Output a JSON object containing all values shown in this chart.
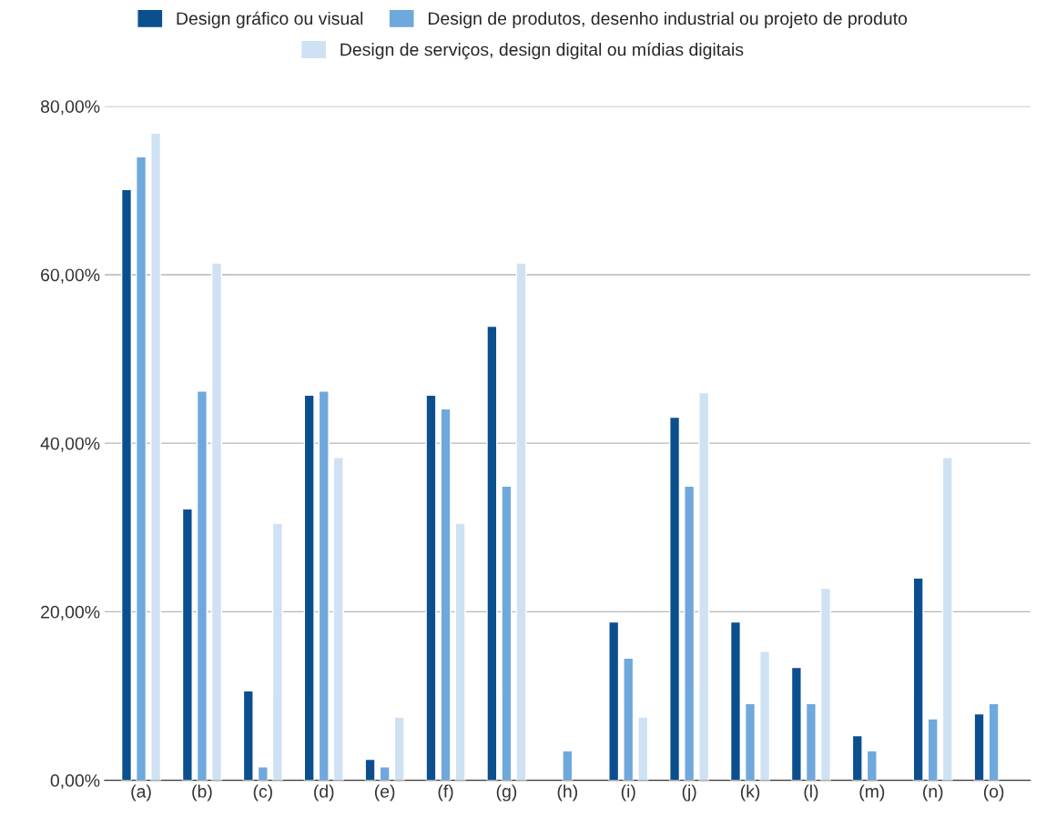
{
  "chart_data": {
    "type": "bar",
    "categories": [
      "(a)",
      "(b)",
      "(c)",
      "(d)",
      "(e)",
      "(f)",
      "(g)",
      "(h)",
      "(i)",
      "(j)",
      "(k)",
      "(l)",
      "(m)",
      "(n)",
      "(o)"
    ],
    "series": [
      {
        "name": "Design gráfico ou visual",
        "color": "#0b4f8f",
        "values": [
          70.1,
          32.2,
          10.6,
          45.7,
          2.5,
          45.7,
          53.9,
          null,
          18.8,
          43.1,
          18.8,
          13.4,
          5.3,
          24.0,
          7.9
        ]
      },
      {
        "name": "Design de produtos, desenho industrial ou projeto de produto",
        "color": "#6fa8dc",
        "values": [
          74.0,
          46.2,
          1.6,
          46.2,
          1.6,
          44.1,
          34.9,
          3.5,
          14.5,
          34.9,
          9.1,
          9.1,
          3.5,
          7.3,
          9.1
        ]
      },
      {
        "name": "Design de serviços, design digital ou mídias digitais",
        "color": "#cfe2f3",
        "values": [
          76.8,
          61.4,
          30.5,
          38.3,
          7.5,
          30.5,
          61.4,
          null,
          7.5,
          46.0,
          15.3,
          22.8,
          null,
          38.3,
          null
        ]
      }
    ],
    "ylim": [
      0,
      80
    ],
    "yticks": [
      {
        "value": 0,
        "label": "0,00%"
      },
      {
        "value": 20,
        "label": "20,00%"
      },
      {
        "value": 40,
        "label": "40,00%"
      },
      {
        "value": 60,
        "label": "60,00%"
      },
      {
        "value": 80,
        "label": "80,00%"
      }
    ],
    "grid": "y",
    "legend": "top"
  }
}
